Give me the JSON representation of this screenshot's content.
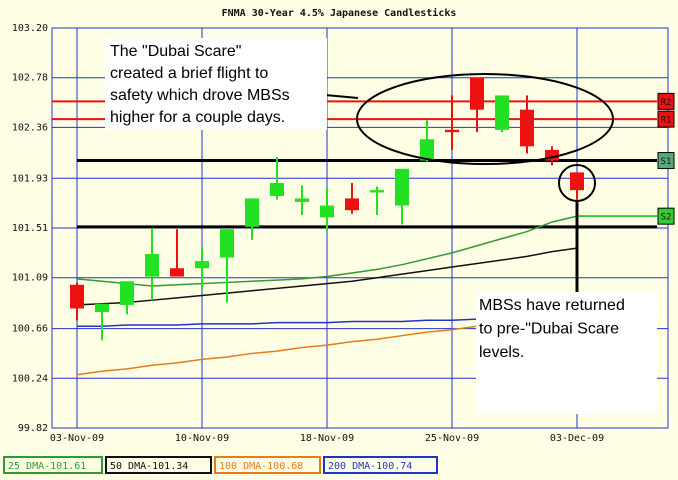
{
  "chart_data": {
    "type": "candlestick",
    "title": "FNMA 30-Year 4.5% Japanese Candlesticks",
    "categories": [
      "03-Nov-09",
      null,
      null,
      null,
      null,
      "10-Nov-09",
      null,
      null,
      null,
      null,
      "18-Nov-09",
      null,
      null,
      null,
      null,
      "25-Nov-09",
      null,
      null,
      null,
      null,
      "03-Dec-09"
    ],
    "open": [
      101.03,
      100.8,
      100.86,
      101.1,
      101.17,
      101.17,
      101.26,
      101.52,
      101.78,
      101.73,
      101.6,
      101.76,
      101.81,
      101.7,
      102.08,
      102.34,
      102.78,
      102.34,
      102.51,
      102.17,
      101.98
    ],
    "high": [
      101.05,
      100.87,
      101.06,
      101.51,
      101.5,
      101.34,
      101.5,
      101.76,
      102.11,
      101.87,
      101.85,
      101.89,
      101.86,
      102.01,
      102.42,
      102.63,
      102.78,
      102.63,
      102.63,
      102.2,
      101.98
    ],
    "low": [
      100.73,
      100.56,
      100.78,
      100.9,
      101.1,
      100.99,
      100.88,
      101.41,
      101.75,
      101.62,
      101.49,
      101.63,
      101.62,
      101.54,
      102.07,
      102.17,
      102.32,
      102.32,
      102.14,
      102.04,
      101.75
    ],
    "close": [
      100.83,
      100.87,
      101.06,
      101.29,
      101.1,
      101.23,
      101.5,
      101.76,
      101.89,
      101.76,
      101.7,
      101.66,
      101.83,
      102.01,
      102.26,
      102.32,
      102.51,
      102.63,
      102.2,
      102.08,
      101.83
    ],
    "up_color": "#22e022",
    "down_color": "#ee1111",
    "series": [
      {
        "name": "25 DMA-101.61",
        "color": "#339933",
        "values": [
          101.08,
          101.06,
          101.04,
          101.02,
          101.03,
          101.04,
          101.05,
          101.06,
          101.07,
          101.08,
          101.1,
          101.13,
          101.16,
          101.2,
          101.25,
          101.3,
          101.36,
          101.42,
          101.48,
          101.56,
          101.61
        ]
      },
      {
        "name": "50 DMA-101.34",
        "color": "#111111",
        "values": [
          100.86,
          100.87,
          100.88,
          100.9,
          100.92,
          100.94,
          100.96,
          100.98,
          101.0,
          101.02,
          101.04,
          101.06,
          101.09,
          101.12,
          101.15,
          101.18,
          101.21,
          101.24,
          101.27,
          101.31,
          101.34
        ]
      },
      {
        "name": "100 DMA-100.68",
        "color": "#e87a1c",
        "values": [
          100.27,
          100.3,
          100.32,
          100.35,
          100.37,
          100.4,
          100.42,
          100.45,
          100.47,
          100.5,
          100.52,
          100.55,
          100.57,
          100.6,
          100.63,
          100.65,
          100.68,
          null,
          null,
          null,
          null
        ]
      },
      {
        "name": "200 DMA-100.74",
        "color": "#2233cc",
        "values": [
          100.68,
          100.68,
          100.69,
          100.69,
          100.69,
          100.7,
          100.7,
          100.7,
          100.71,
          100.71,
          100.71,
          100.72,
          100.72,
          100.72,
          100.73,
          100.73,
          100.74,
          null,
          null,
          null,
          null
        ]
      }
    ],
    "levels": [
      {
        "label": "R2",
        "value": 102.58,
        "color": "#ee1111"
      },
      {
        "label": "R1",
        "value": 102.43,
        "color": "#ee1111"
      },
      {
        "label": "S1",
        "value": 102.08,
        "color": "#000000"
      },
      {
        "value": 101.52,
        "color": "#000000"
      },
      {
        "label": "S2",
        "value": 101.61,
        "color": "#33cc33",
        "x_from": 20
      }
    ],
    "ylim": [
      99.82,
      103.2
    ],
    "yticks": [
      {
        "value": 103.2,
        "label": "103.20"
      },
      102.78,
      102.36,
      101.93,
      101.51,
      101.09,
      100.66,
      100.24,
      99.82
    ],
    "grid": true,
    "annotations": [
      {
        "lines": [
          "The \"Dubai Scare\"",
          "created a brief flight to",
          "safety which drove MBSs",
          "higher for a couple days."
        ]
      },
      {
        "lines": [
          "MBSs have returned",
          "to pre-\"Dubai Scare",
          "levels."
        ]
      }
    ]
  }
}
